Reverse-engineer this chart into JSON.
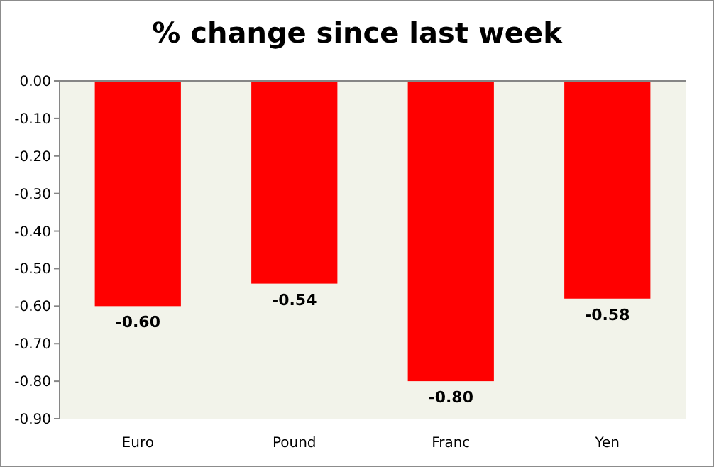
{
  "chart_data": {
    "type": "bar",
    "title": "% change since last week",
    "categories": [
      "Euro",
      "Pound",
      "Franc",
      "Yen"
    ],
    "values": [
      -0.6,
      -0.54,
      -0.8,
      -0.58
    ],
    "value_labels": [
      "-0.60",
      "-0.54",
      "-0.80",
      "-0.58"
    ],
    "color": "#ff0000",
    "ylim": [
      -0.9,
      0
    ],
    "yticks": [
      {
        "value": 0,
        "label": "0.00"
      },
      {
        "value": -0.1,
        "label": "-0.10"
      },
      {
        "value": -0.2,
        "label": "-0.20"
      },
      {
        "value": -0.3,
        "label": "-0.30"
      },
      {
        "value": -0.4,
        "label": "-0.40"
      },
      {
        "value": -0.5,
        "label": "-0.50"
      },
      {
        "value": -0.6,
        "label": "-0.60"
      },
      {
        "value": -0.7,
        "label": "-0.70"
      },
      {
        "value": -0.8,
        "label": "-0.80"
      },
      {
        "value": -0.9,
        "label": "-0.90"
      }
    ],
    "grid": false
  }
}
